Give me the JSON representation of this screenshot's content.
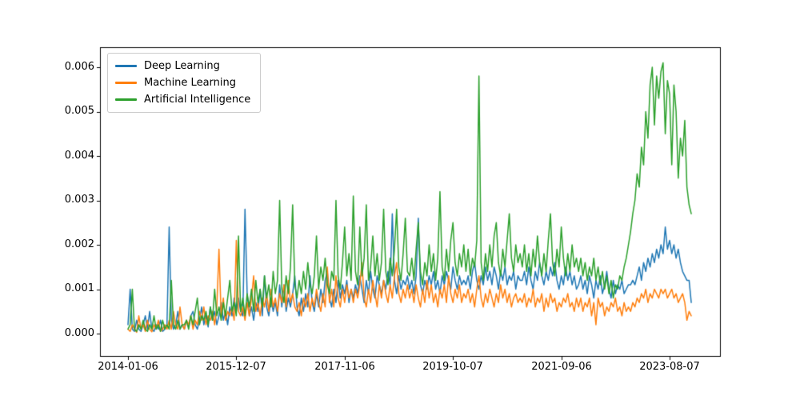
{
  "figure": {
    "background": "#ffffff"
  },
  "chart_data": {
    "type": "line",
    "title": "",
    "xlabel": "",
    "ylabel": "",
    "grid": false,
    "legend_position": "upper left",
    "x_tick_labels": [
      "2014-01-06",
      "2015-12-07",
      "2017-11-06",
      "2019-10-07",
      "2021-09-06",
      "2023-08-07"
    ],
    "y_tick_labels": [
      "0.000",
      "0.001",
      "0.002",
      "0.003",
      "0.004",
      "0.005",
      "0.006"
    ],
    "y_tick_values": [
      0.0,
      0.001,
      0.002,
      0.003,
      0.004,
      0.005,
      0.006
    ],
    "ylim": [
      -0.0005,
      0.00645
    ],
    "x_start_date": "2014-01-06",
    "x_end_date": "2023-12-25",
    "x_step_days": 14,
    "values_unit_scale": 0.0001,
    "series": [
      {
        "name": "Deep Learning",
        "color": "#1f77b4",
        "values": [
          2,
          10,
          1,
          0.5,
          3,
          1,
          0.5,
          2,
          4,
          1,
          5,
          1,
          0.5,
          2,
          1,
          3,
          0.5,
          1,
          2,
          24,
          3,
          1,
          2,
          5,
          1,
          2,
          1,
          3,
          1.5,
          4,
          5,
          2,
          1,
          3,
          6,
          2,
          4,
          1.5,
          6,
          3,
          5,
          2,
          4,
          7,
          3,
          5,
          2,
          6,
          4,
          8,
          5,
          8,
          5,
          4,
          28,
          9,
          4,
          6,
          3,
          7,
          5,
          10,
          4,
          13,
          6,
          4,
          8,
          5,
          7,
          4,
          11,
          6,
          11,
          5,
          8,
          6,
          9,
          13,
          6,
          4,
          8,
          5,
          9,
          6,
          13,
          7,
          5,
          9,
          6,
          10,
          7,
          12,
          14,
          8,
          6,
          10,
          7,
          12,
          8,
          11,
          9,
          12,
          7,
          10,
          8,
          11,
          9,
          13,
          10,
          7,
          12,
          9,
          14,
          10,
          8,
          13,
          11,
          9,
          12,
          10,
          14,
          11,
          27,
          12,
          9,
          13,
          10,
          12,
          11,
          13,
          10,
          12,
          9,
          13,
          26,
          11,
          9,
          12,
          10,
          13,
          11,
          14,
          10,
          12,
          9,
          13,
          11,
          14,
          12,
          10,
          15,
          12,
          10,
          13,
          11,
          12,
          11,
          13,
          10,
          14,
          16,
          12,
          10,
          13,
          11,
          15,
          12,
          14,
          11,
          15,
          13,
          10,
          14,
          12,
          15,
          11,
          13,
          12,
          14,
          10,
          13,
          12,
          12,
          14,
          11,
          15,
          12,
          10,
          14,
          12,
          16,
          13,
          11,
          14,
          12,
          15,
          13,
          16,
          12,
          10,
          13,
          11,
          15,
          12,
          14,
          11,
          13,
          10,
          11,
          13,
          10,
          12,
          9,
          13,
          11,
          8,
          12,
          10,
          13,
          9,
          11,
          14,
          10,
          8,
          12,
          9,
          11,
          10,
          12,
          9,
          10,
          11,
          11,
          12,
          11,
          13,
          15,
          12,
          16,
          14,
          17,
          15,
          18,
          16,
          19,
          17,
          20,
          18,
          24,
          19,
          21,
          18,
          20,
          17,
          19,
          16,
          14,
          13,
          12,
          12,
          7
        ]
      },
      {
        "name": "Machine Learning",
        "color": "#ff7f0e",
        "values": [
          1,
          0.5,
          2,
          1,
          0.3,
          4,
          1,
          2,
          0.5,
          3,
          1,
          0.4,
          2,
          1,
          3,
          0.5,
          1,
          2,
          1,
          3,
          1,
          5,
          2,
          1,
          6,
          2,
          1,
          3,
          2,
          4,
          1,
          3,
          2,
          5,
          3,
          6,
          2,
          4,
          3,
          5,
          2,
          6,
          19,
          4,
          8,
          3,
          5,
          4,
          6,
          3,
          21,
          5,
          4,
          6,
          3,
          7,
          4,
          8,
          13,
          5,
          7,
          4,
          8,
          6,
          9,
          5,
          10,
          6,
          8,
          5,
          9,
          7,
          11,
          6,
          12,
          7,
          9,
          6,
          5,
          7,
          4,
          8,
          6,
          9,
          5,
          8,
          6,
          10,
          7,
          5,
          9,
          6,
          15,
          7,
          10,
          6,
          13,
          8,
          6,
          10,
          7,
          11,
          8,
          10,
          7,
          10,
          8,
          11,
          16,
          8,
          6,
          10,
          7,
          12,
          9,
          6,
          11,
          8,
          12,
          9,
          7,
          11,
          8,
          13,
          16,
          9,
          7,
          10,
          8,
          11,
          8,
          10,
          7,
          11,
          8,
          6,
          10,
          7,
          12,
          8,
          11,
          7,
          9,
          6,
          10,
          8,
          11,
          7,
          13,
          9,
          7,
          10,
          8,
          11,
          7,
          9,
          8,
          10,
          7,
          9,
          6,
          10,
          13,
          8,
          6,
          9,
          7,
          10,
          8,
          6,
          9,
          7,
          11,
          8,
          10,
          7,
          9,
          6,
          8,
          9,
          7,
          8,
          7,
          9,
          6,
          8,
          7,
          10,
          6,
          8,
          7,
          9,
          5,
          8,
          6,
          9,
          7,
          8,
          5,
          7,
          6,
          8,
          7,
          9,
          6,
          7,
          5,
          8,
          6,
          8,
          5,
          7,
          6,
          8,
          4,
          7,
          2,
          8,
          6,
          7,
          4,
          6,
          5,
          7,
          6,
          8,
          5,
          6,
          4,
          7,
          5,
          6,
          5,
          7,
          6,
          8,
          7,
          9,
          8,
          10,
          7,
          9,
          8,
          10,
          9,
          8,
          10,
          9,
          10,
          8,
          9,
          10,
          8,
          9,
          7,
          8,
          9,
          7,
          3,
          5,
          4
        ]
      },
      {
        "name": "Artificial Intelligence",
        "color": "#2ca02c",
        "values": [
          1,
          2,
          10,
          1,
          0.5,
          2,
          1,
          3,
          1,
          0.5,
          2,
          1,
          4,
          1,
          2,
          0.5,
          3,
          1,
          2,
          1,
          12,
          2,
          1,
          3,
          1,
          2,
          2,
          3,
          1,
          4,
          2,
          5,
          8,
          2,
          4,
          3,
          5,
          2,
          6,
          3,
          10,
          4,
          6,
          3,
          7,
          4,
          8,
          12,
          5,
          7,
          4,
          22,
          5,
          8,
          4,
          9,
          6,
          10,
          5,
          12,
          7,
          10,
          6,
          13,
          8,
          11,
          6,
          14,
          9,
          12,
          30,
          10,
          7,
          13,
          9,
          15,
          29,
          11,
          8,
          12,
          9,
          14,
          10,
          16,
          11,
          9,
          13,
          22,
          10,
          15,
          12,
          17,
          11,
          9,
          14,
          12,
          30,
          13,
          10,
          16,
          24,
          13,
          18,
          12,
          31,
          14,
          11,
          24,
          13,
          17,
          29,
          12,
          15,
          22,
          13,
          18,
          12,
          16,
          28,
          14,
          11,
          17,
          13,
          19,
          28,
          15,
          12,
          18,
          26,
          14,
          13,
          17,
          12,
          19,
          25,
          14,
          11,
          16,
          13,
          20,
          14,
          18,
          12,
          17,
          32,
          15,
          12,
          19,
          14,
          21,
          25,
          16,
          13,
          18,
          15,
          20,
          14,
          19,
          13,
          17,
          15,
          21,
          58,
          16,
          12,
          18,
          14,
          20,
          15,
          22,
          25,
          16,
          13,
          19,
          15,
          21,
          27,
          17,
          14,
          20,
          16,
          18,
          15,
          20,
          14,
          18,
          13,
          19,
          15,
          22,
          16,
          13,
          18,
          14,
          21,
          27,
          16,
          13,
          19,
          15,
          24,
          17,
          13,
          18,
          14,
          20,
          15,
          17,
          14,
          17,
          13,
          16,
          12,
          15,
          13,
          17,
          12,
          15,
          11,
          14,
          10,
          13,
          9,
          12,
          8,
          11,
          10,
          13,
          12,
          15,
          17,
          20,
          23,
          27,
          30,
          36,
          33,
          42,
          38,
          50,
          44,
          56,
          60,
          47,
          58,
          53,
          59,
          61,
          45,
          57,
          54,
          38,
          56,
          50,
          35,
          44,
          40,
          48,
          33,
          29,
          27
        ]
      }
    ]
  }
}
